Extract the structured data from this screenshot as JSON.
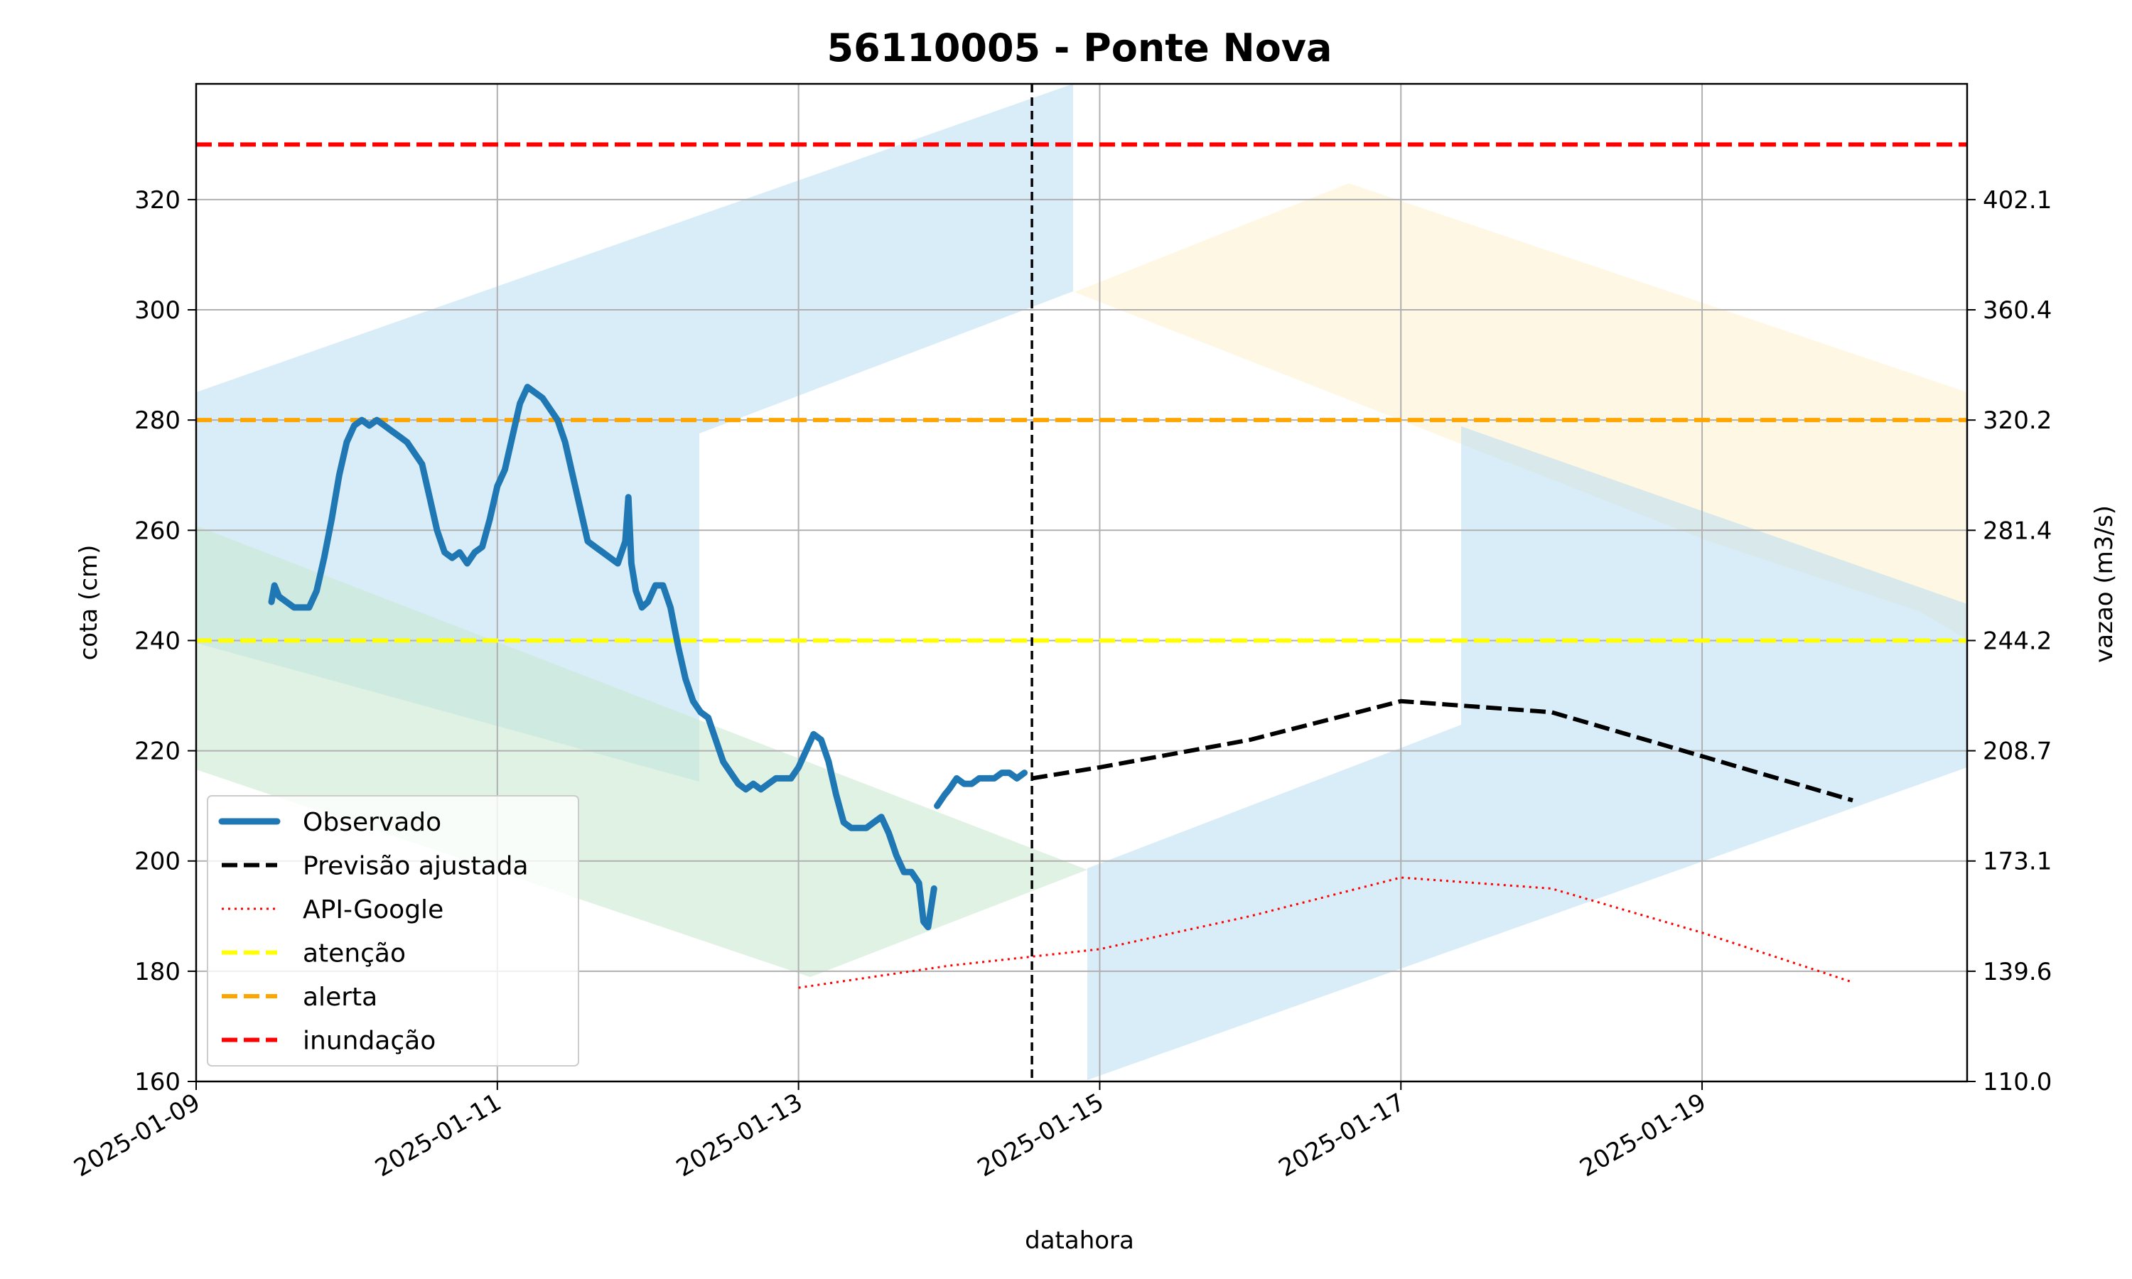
{
  "chart_data": {
    "type": "line",
    "title": "56110005 - Ponte Nova",
    "xlabel": "datahora",
    "ylabel": "cota (cm)",
    "ylabel_right": "vazao (m3/s)",
    "xlim": [
      "2025-01-09",
      "2025-01-20.76"
    ],
    "ylim": [
      160,
      341
    ],
    "ylim_right": [
      110.0,
      431.7
    ],
    "grid": true,
    "legend_position": "lower-left",
    "x_ticks": [
      "2025-01-09",
      "2025-01-11",
      "2025-01-13",
      "2025-01-15",
      "2025-01-17",
      "2025-01-19"
    ],
    "y_ticks": [
      160,
      180,
      200,
      220,
      240,
      260,
      280,
      300,
      320
    ],
    "y_ticks_right": [
      "110.0",
      "139.6",
      "173.1",
      "208.7",
      "244.2",
      "281.4",
      "320.2",
      "360.4",
      "402.1"
    ],
    "forecast_start": "2025-01-14.55",
    "series": [
      {
        "name": "Observado",
        "style": "solid-thick",
        "color": "#1f77b4",
        "segments": [
          [
            [
              "2025-01-09.5",
              247
            ],
            [
              "2025-01-09.52",
              250
            ],
            [
              "2025-01-09.55",
              248
            ],
            [
              "2025-01-09.6",
              247
            ],
            [
              "2025-01-09.65",
              246
            ],
            [
              "2025-01-09.7",
              246
            ],
            [
              "2025-01-09.75",
              246
            ],
            [
              "2025-01-09.8",
              249
            ],
            [
              "2025-01-09.85",
              255
            ],
            [
              "2025-01-09.9",
              262
            ],
            [
              "2025-01-09.95",
              270
            ],
            [
              "2025-01-10.0",
              276
            ],
            [
              "2025-01-10.05",
              279
            ],
            [
              "2025-01-10.1",
              280
            ],
            [
              "2025-01-10.15",
              279
            ],
            [
              "2025-01-10.2",
              280
            ],
            [
              "2025-01-10.25",
              279
            ],
            [
              "2025-01-10.3",
              278
            ],
            [
              "2025-01-10.35",
              277
            ],
            [
              "2025-01-10.4",
              276
            ],
            [
              "2025-01-10.45",
              274
            ],
            [
              "2025-01-10.5",
              272
            ],
            [
              "2025-01-10.55",
              266
            ],
            [
              "2025-01-10.6",
              260
            ],
            [
              "2025-01-10.65",
              256
            ],
            [
              "2025-01-10.7",
              255
            ],
            [
              "2025-01-10.75",
              256
            ],
            [
              "2025-01-10.8",
              254
            ],
            [
              "2025-01-10.85",
              256
            ],
            [
              "2025-01-10.9",
              257
            ],
            [
              "2025-01-10.95",
              262
            ],
            [
              "2025-01-11.0",
              268
            ],
            [
              "2025-01-11.05",
              271
            ],
            [
              "2025-01-11.1",
              277
            ],
            [
              "2025-01-11.15",
              283
            ],
            [
              "2025-01-11.2",
              286
            ],
            [
              "2025-01-11.25",
              285
            ],
            [
              "2025-01-11.3",
              284
            ],
            [
              "2025-01-11.35",
              282
            ],
            [
              "2025-01-11.4",
              280
            ],
            [
              "2025-01-11.45",
              276
            ],
            [
              "2025-01-11.5",
              270
            ],
            [
              "2025-01-11.55",
              264
            ],
            [
              "2025-01-11.6",
              258
            ],
            [
              "2025-01-11.65",
              257
            ],
            [
              "2025-01-11.7",
              256
            ],
            [
              "2025-01-11.75",
              255
            ],
            [
              "2025-01-11.8",
              254
            ],
            [
              "2025-01-11.85",
              258
            ],
            [
              "2025-01-11.87",
              266
            ],
            [
              "2025-01-11.89",
              254
            ],
            [
              "2025-01-11.92",
              249
            ],
            [
              "2025-01-11.96",
              246
            ],
            [
              "2025-01-12.0",
              247
            ],
            [
              "2025-01-12.05",
              250
            ],
            [
              "2025-01-12.1",
              250
            ],
            [
              "2025-01-12.15",
              246
            ],
            [
              "2025-01-12.2",
              239
            ],
            [
              "2025-01-12.25",
              233
            ],
            [
              "2025-01-12.3",
              229
            ],
            [
              "2025-01-12.35",
              227
            ],
            [
              "2025-01-12.4",
              226
            ],
            [
              "2025-01-12.45",
              222
            ],
            [
              "2025-01-12.5",
              218
            ],
            [
              "2025-01-12.55",
              216
            ],
            [
              "2025-01-12.6",
              214
            ],
            [
              "2025-01-12.65",
              213
            ],
            [
              "2025-01-12.7",
              214
            ],
            [
              "2025-01-12.75",
              213
            ],
            [
              "2025-01-12.8",
              214
            ],
            [
              "2025-01-12.85",
              215
            ],
            [
              "2025-01-12.9",
              215
            ],
            [
              "2025-01-12.95",
              215
            ],
            [
              "2025-01-13.0",
              217
            ],
            [
              "2025-01-13.05",
              220
            ],
            [
              "2025-01-13.1",
              223
            ],
            [
              "2025-01-13.15",
              222
            ],
            [
              "2025-01-13.2",
              218
            ],
            [
              "2025-01-13.25",
              212
            ],
            [
              "2025-01-13.3",
              207
            ],
            [
              "2025-01-13.35",
              206
            ],
            [
              "2025-01-13.4",
              206
            ],
            [
              "2025-01-13.45",
              206
            ],
            [
              "2025-01-13.5",
              207
            ],
            [
              "2025-01-13.55",
              208
            ],
            [
              "2025-01-13.6",
              205
            ],
            [
              "2025-01-13.65",
              201
            ],
            [
              "2025-01-13.7",
              198
            ],
            [
              "2025-01-13.75",
              198
            ],
            [
              "2025-01-13.8",
              196
            ],
            [
              "2025-01-13.83",
              189
            ],
            [
              "2025-01-13.86",
              188
            ],
            [
              "2025-01-13.9",
              195
            ]
          ],
          [
            [
              "2025-01-13.92",
              210
            ],
            [
              "2025-01-13.97",
              212
            ],
            [
              "2025-01-14.0",
              213
            ],
            [
              "2025-01-14.05",
              215
            ],
            [
              "2025-01-14.1",
              214
            ],
            [
              "2025-01-14.15",
              214
            ],
            [
              "2025-01-14.2",
              215
            ],
            [
              "2025-01-14.25",
              215
            ],
            [
              "2025-01-14.3",
              215
            ],
            [
              "2025-01-14.35",
              216
            ],
            [
              "2025-01-14.4",
              216
            ],
            [
              "2025-01-14.45",
              215
            ],
            [
              "2025-01-14.5",
              216
            ]
          ]
        ]
      },
      {
        "name": "Previsão ajustada",
        "style": "dashed",
        "color": "#000000",
        "points": [
          [
            "2025-01-14.55",
            215
          ],
          [
            "2025-01-15",
            217
          ],
          [
            "2025-01-16",
            222
          ],
          [
            "2025-01-17",
            229
          ],
          [
            "2025-01-18",
            227
          ],
          [
            "2025-01-19",
            219
          ],
          [
            "2025-01-20",
            211
          ]
        ]
      },
      {
        "name": "API-Google",
        "style": "dotted",
        "color": "#ff0000",
        "points": [
          [
            "2025-01-13",
            177
          ],
          [
            "2025-01-14",
            181
          ],
          [
            "2025-01-15",
            184
          ],
          [
            "2025-01-16",
            190
          ],
          [
            "2025-01-17",
            197
          ],
          [
            "2025-01-18",
            195
          ],
          [
            "2025-01-19",
            187
          ],
          [
            "2025-01-20",
            178
          ]
        ]
      }
    ],
    "thresholds": [
      {
        "name": "atenção",
        "value": 240,
        "color": "#ffff00"
      },
      {
        "name": "alerta",
        "value": 280,
        "color": "#ffa500"
      },
      {
        "name": "inundação",
        "value": 330,
        "color": "#ff0000"
      }
    ]
  }
}
